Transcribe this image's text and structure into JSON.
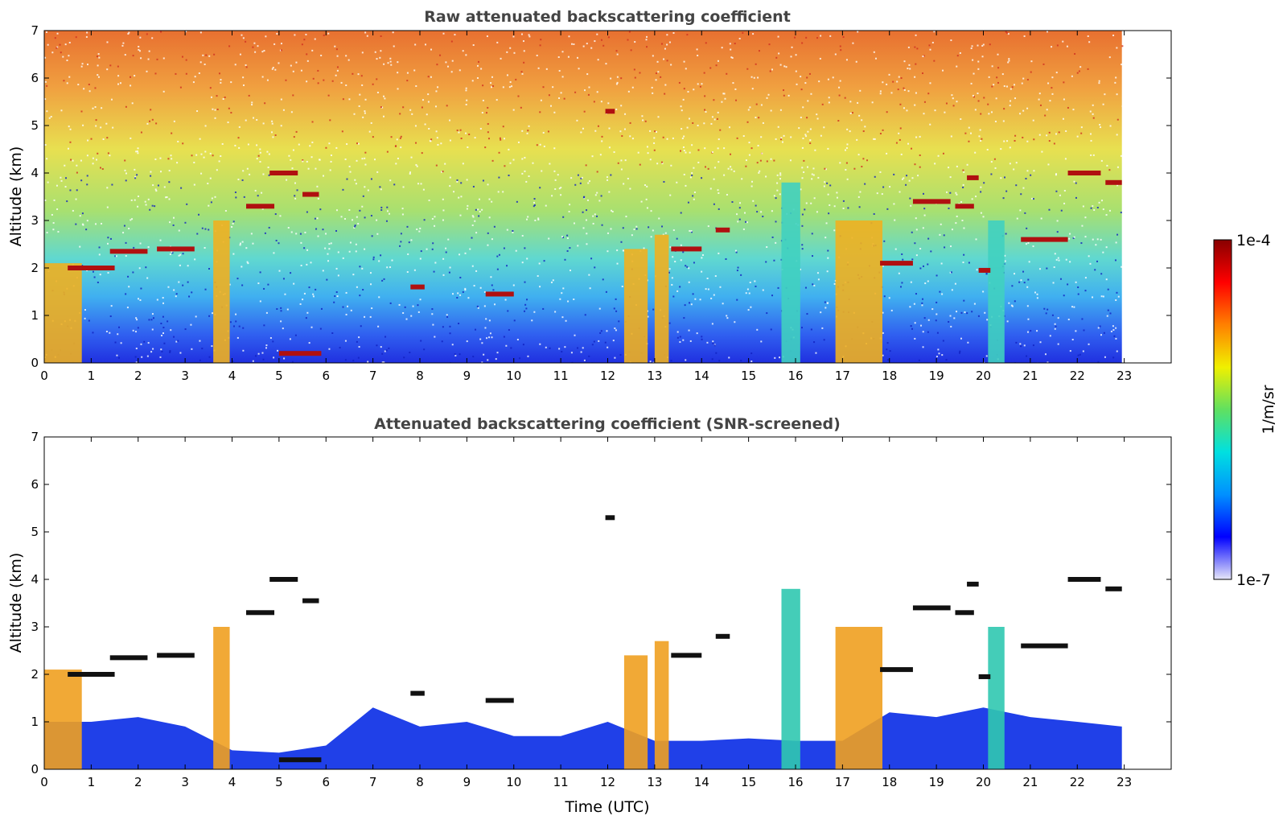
{
  "chart_data": [
    {
      "type": "heatmap",
      "title": "Raw attenuated backscattering coefficient",
      "xlabel": "",
      "ylabel": "Altitude (km)",
      "xlim": [
        0,
        24
      ],
      "ylim": [
        0,
        7
      ],
      "x_ticks": [
        "0",
        "1",
        "2",
        "3",
        "4",
        "5",
        "6",
        "7",
        "8",
        "9",
        "10",
        "11",
        "12",
        "13",
        "14",
        "15",
        "16",
        "17",
        "18",
        "19",
        "20",
        "21",
        "22",
        "23"
      ],
      "y_ticks": [
        "0",
        "1",
        "2",
        "3",
        "4",
        "5",
        "6",
        "7"
      ],
      "data_end_time": 22.95,
      "background_gradient": [
        {
          "alt": 0.0,
          "color": "#2030e0"
        },
        {
          "alt": 0.6,
          "color": "#3060f0"
        },
        {
          "alt": 1.4,
          "color": "#40b0f0"
        },
        {
          "alt": 2.2,
          "color": "#60d8d0"
        },
        {
          "alt": 3.2,
          "color": "#a8e070"
        },
        {
          "alt": 4.5,
          "color": "#e8e050"
        },
        {
          "alt": 5.8,
          "color": "#f0a040"
        },
        {
          "alt": 7.0,
          "color": "#e87030"
        }
      ],
      "columns": [
        {
          "t0": 0.0,
          "t1": 0.8,
          "alt_top": 2.1,
          "intensity": "high"
        },
        {
          "t0": 3.6,
          "t1": 3.95,
          "alt_top": 3.0,
          "intensity": "high"
        },
        {
          "t0": 12.35,
          "t1": 12.85,
          "alt_top": 2.4,
          "intensity": "high"
        },
        {
          "t0": 13.0,
          "t1": 13.3,
          "alt_top": 2.7,
          "intensity": "high"
        },
        {
          "t0": 15.7,
          "t1": 16.1,
          "alt_top": 3.8,
          "intensity": "medium"
        },
        {
          "t0": 16.85,
          "t1": 17.85,
          "alt_top": 3.0,
          "intensity": "high"
        },
        {
          "t0": 20.1,
          "t1": 20.45,
          "alt_top": 3.0,
          "intensity": "medium"
        }
      ],
      "layers": [
        {
          "t0": 0.5,
          "t1": 1.5,
          "alt": 2.0
        },
        {
          "t0": 1.4,
          "t1": 2.2,
          "alt": 2.35
        },
        {
          "t0": 2.4,
          "t1": 3.2,
          "alt": 2.4
        },
        {
          "t0": 4.3,
          "t1": 4.9,
          "alt": 3.3
        },
        {
          "t0": 4.8,
          "t1": 5.4,
          "alt": 4.0
        },
        {
          "t0": 5.5,
          "t1": 5.85,
          "alt": 3.55
        },
        {
          "t0": 5.0,
          "t1": 5.9,
          "alt": 0.2
        },
        {
          "t0": 7.8,
          "t1": 8.1,
          "alt": 1.6
        },
        {
          "t0": 9.4,
          "t1": 10.0,
          "alt": 1.45
        },
        {
          "t0": 11.95,
          "t1": 12.15,
          "alt": 5.3
        },
        {
          "t0": 13.35,
          "t1": 14.0,
          "alt": 2.4
        },
        {
          "t0": 14.3,
          "t1": 14.6,
          "alt": 2.8
        },
        {
          "t0": 17.8,
          "t1": 18.5,
          "alt": 2.1
        },
        {
          "t0": 18.5,
          "t1": 19.3,
          "alt": 3.4
        },
        {
          "t0": 19.4,
          "t1": 19.8,
          "alt": 3.3
        },
        {
          "t0": 19.65,
          "t1": 19.9,
          "alt": 3.9
        },
        {
          "t0": 19.9,
          "t1": 20.15,
          "alt": 1.95
        },
        {
          "t0": 20.8,
          "t1": 21.8,
          "alt": 2.6
        },
        {
          "t0": 21.8,
          "t1": 22.5,
          "alt": 4.0
        },
        {
          "t0": 22.6,
          "t1": 22.95,
          "alt": 3.8
        }
      ]
    },
    {
      "type": "heatmap",
      "title": "Attenuated backscattering coefficient (SNR-screened)",
      "xlabel": "Time (UTC)",
      "ylabel": "Altitude (km)",
      "xlim": [
        0,
        24
      ],
      "ylim": [
        0,
        7
      ],
      "x_ticks": [
        "0",
        "1",
        "2",
        "3",
        "4",
        "5",
        "6",
        "7",
        "8",
        "9",
        "10",
        "11",
        "12",
        "13",
        "14",
        "15",
        "16",
        "17",
        "18",
        "19",
        "20",
        "21",
        "22",
        "23"
      ],
      "y_ticks": [
        "0",
        "1",
        "2",
        "3",
        "4",
        "5",
        "6",
        "7"
      ],
      "data_end_time": 22.95,
      "boundary_layer_top": [
        {
          "t": 0.0,
          "alt": 1.0
        },
        {
          "t": 1.0,
          "alt": 1.0
        },
        {
          "t": 2.0,
          "alt": 1.1
        },
        {
          "t": 3.0,
          "alt": 0.9
        },
        {
          "t": 4.0,
          "alt": 0.4
        },
        {
          "t": 5.0,
          "alt": 0.35
        },
        {
          "t": 6.0,
          "alt": 0.5
        },
        {
          "t": 7.0,
          "alt": 1.3
        },
        {
          "t": 8.0,
          "alt": 0.9
        },
        {
          "t": 9.0,
          "alt": 1.0
        },
        {
          "t": 10.0,
          "alt": 0.7
        },
        {
          "t": 11.0,
          "alt": 0.7
        },
        {
          "t": 12.0,
          "alt": 1.0
        },
        {
          "t": 13.0,
          "alt": 0.6
        },
        {
          "t": 14.0,
          "alt": 0.6
        },
        {
          "t": 15.0,
          "alt": 0.65
        },
        {
          "t": 16.0,
          "alt": 0.6
        },
        {
          "t": 17.0,
          "alt": 0.6
        },
        {
          "t": 18.0,
          "alt": 1.2
        },
        {
          "t": 19.0,
          "alt": 1.1
        },
        {
          "t": 20.0,
          "alt": 1.3
        },
        {
          "t": 21.0,
          "alt": 1.1
        },
        {
          "t": 22.0,
          "alt": 1.0
        },
        {
          "t": 22.95,
          "alt": 0.9
        }
      ]
    }
  ],
  "colorbar": {
    "min_label": "1e-7",
    "max_label": "1e-4",
    "unit_label": "1/m/sr",
    "stops": [
      "#e6e6f8",
      "#0000ff",
      "#0090ff",
      "#00e0e0",
      "#60e060",
      "#f0f000",
      "#ff8000",
      "#ff0000",
      "#880000"
    ]
  }
}
